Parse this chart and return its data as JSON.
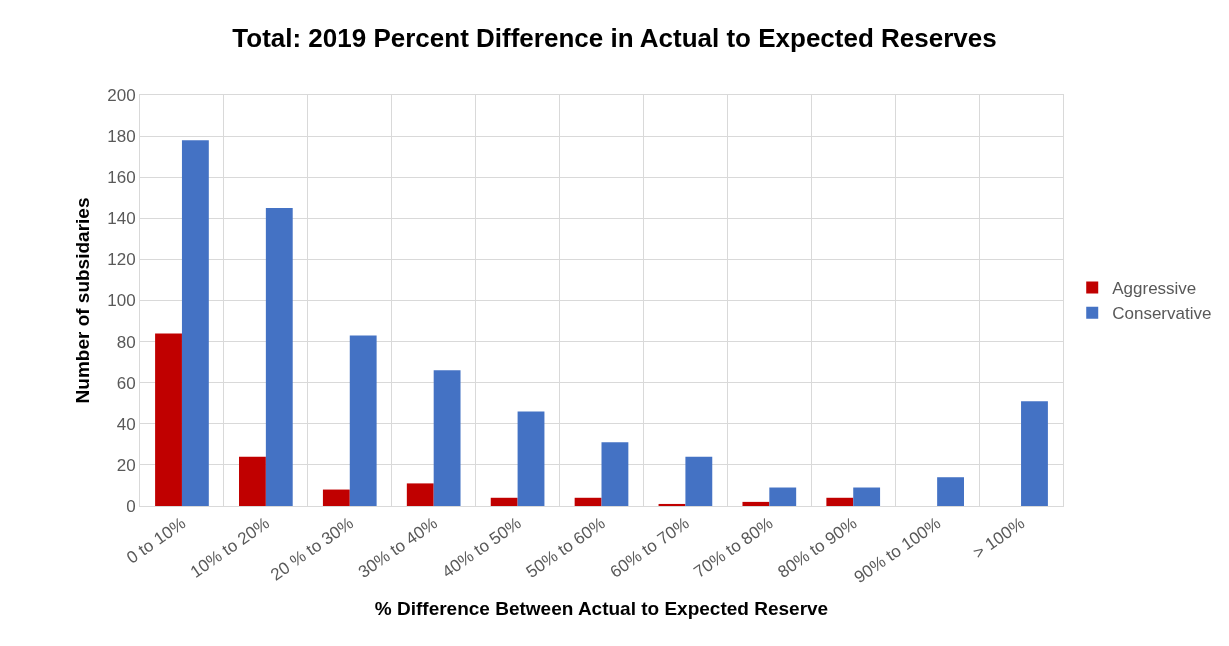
{
  "chart_data": {
    "type": "bar",
    "title": "Total: 2019 Percent Difference in Actual to Expected Reserves",
    "xlabel": "% Difference Between Actual to Expected Reserve",
    "ylabel": "Number of subsidaries",
    "categories": [
      "0 to 10%",
      "10% to 20%",
      "20 % to 30%",
      "30% to 40%",
      "40% to 50%",
      "50% to 60%",
      "60% to 70%",
      "70% to 80%",
      "80% to 90%",
      "90% to 100%",
      "> 100%"
    ],
    "series": [
      {
        "name": "Aggressive",
        "color": "#c00000",
        "values": [
          84,
          24,
          8,
          11,
          4,
          4,
          1,
          2,
          4,
          0,
          0
        ]
      },
      {
        "name": "Conservative",
        "color": "#4472c4",
        "values": [
          178,
          145,
          83,
          66,
          46,
          31,
          24,
          9,
          9,
          14,
          51
        ]
      }
    ],
    "ylim": [
      0,
      200
    ],
    "yticks": [
      0,
      20,
      40,
      60,
      80,
      100,
      120,
      140,
      160,
      180,
      200
    ],
    "grid": true,
    "legend": "right"
  }
}
